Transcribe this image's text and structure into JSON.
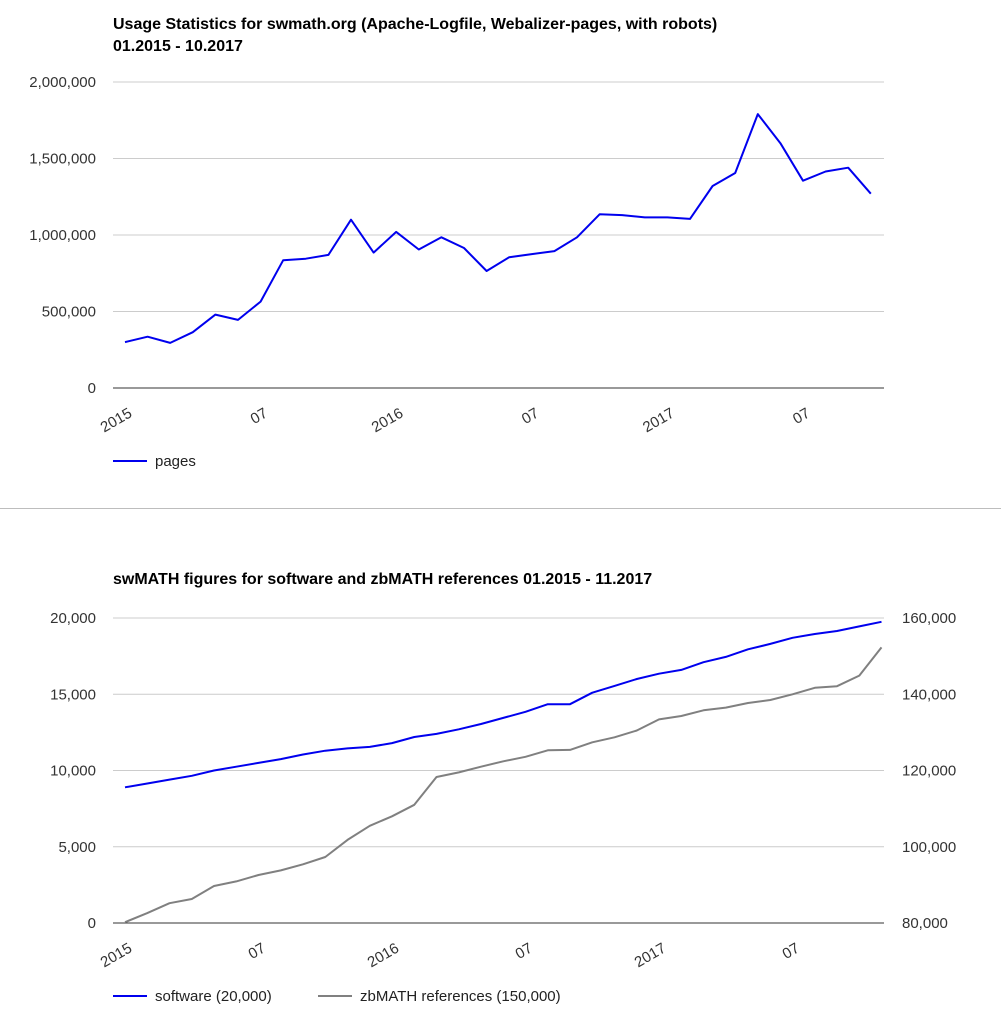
{
  "chart_data": [
    {
      "type": "line",
      "title_line1": "Usage Statistics for swmath.org (Apache-Logfile, Webalizer-pages, with robots)",
      "title_line2": "01.2015 - 10.2017",
      "x_labels": [
        "2015",
        "07",
        "2016",
        "07",
        "2017",
        "07"
      ],
      "x_label_indices": [
        0,
        6,
        12,
        18,
        24,
        30
      ],
      "y_ticks": [
        "0",
        "500,000",
        "1,000,000",
        "1,500,000",
        "2,000,000"
      ],
      "ylim": [
        0,
        2000000
      ],
      "grid": true,
      "legend_position": "bottom-left",
      "series": [
        {
          "name": "pages",
          "color": "#0000ee",
          "values": [
            300000,
            335000,
            295000,
            365000,
            480000,
            445000,
            565000,
            835000,
            845000,
            870000,
            1100000,
            885000,
            1020000,
            905000,
            985000,
            915000,
            765000,
            855000,
            875000,
            895000,
            985000,
            1135000,
            1130000,
            1115000,
            1115000,
            1105000,
            1320000,
            1405000,
            1790000,
            1600000,
            1355000,
            1415000,
            1440000,
            1270000
          ]
        }
      ]
    },
    {
      "type": "line",
      "title_line1": "swMATH figures for software and zbMATH references 01.2015 - 11.2017",
      "x_labels": [
        "2015",
        "07",
        "2016",
        "07",
        "2017",
        "07"
      ],
      "x_label_indices": [
        0,
        6,
        12,
        18,
        24,
        30
      ],
      "y_ticks_left": [
        "0",
        "5,000",
        "10,000",
        "15,000",
        "20,000"
      ],
      "y_ticks_right": [
        "80,000",
        "100,000",
        "120,000",
        "140,000",
        "160,000"
      ],
      "ylim_left": [
        0,
        20000
      ],
      "ylim_right": [
        80000,
        160000
      ],
      "grid": true,
      "legend_position": "bottom-left",
      "series": [
        {
          "name": "software (20,000)",
          "axis": "left",
          "color": "#0000ee",
          "values": [
            8900,
            9150,
            9400,
            9650,
            10000,
            10250,
            10500,
            10750,
            11050,
            11300,
            11450,
            11550,
            11800,
            12200,
            12400,
            12700,
            13050,
            13450,
            13850,
            14350,
            14350,
            15100,
            15550,
            16000,
            16350,
            16600,
            17100,
            17450,
            17950,
            18300,
            18700,
            18950,
            19150,
            19450,
            19750
          ]
        },
        {
          "name": "zbMATH references (150,000)",
          "axis": "right",
          "color": "#808080",
          "values": [
            80200,
            82600,
            85200,
            86300,
            89700,
            90900,
            92600,
            93800,
            95400,
            97300,
            101800,
            105500,
            108000,
            111000,
            118300,
            119500,
            121000,
            122400,
            123600,
            125300,
            125400,
            127400,
            128700,
            130500,
            133400,
            134300,
            135800,
            136500,
            137700,
            138500,
            140000,
            141700,
            142100,
            144900,
            152300
          ]
        }
      ]
    }
  ]
}
